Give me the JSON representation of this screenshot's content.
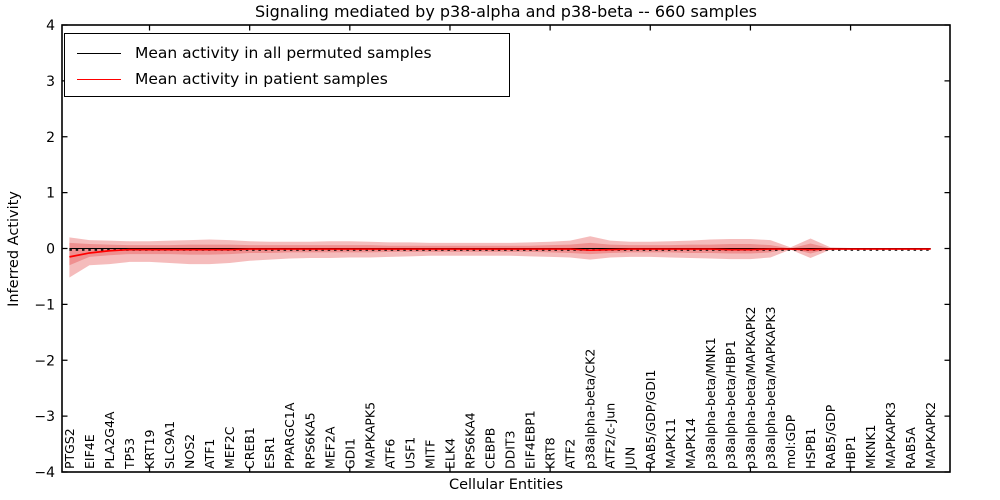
{
  "chart_data": {
    "type": "line",
    "title": "Signaling mediated by p38-alpha and p38-beta -- 660 samples",
    "xlabel": "Cellular Entities",
    "ylabel": "Inferred Activity",
    "ylim": [
      -4,
      4
    ],
    "yticks": [
      4,
      3,
      2,
      1,
      0,
      -1,
      -2,
      -3,
      -4
    ],
    "ytick_labels": [
      "4",
      "3",
      "2",
      "1",
      "0",
      "−1",
      "−2",
      "−3",
      "−4"
    ],
    "x_major_tick_indices": [
      4,
      9,
      14,
      19,
      24,
      29,
      34,
      39
    ],
    "grid": false,
    "legend_position": "upper left",
    "categories": [
      "PTGS2",
      "EIF4E",
      "PLA2G4A",
      "TP53",
      "KRT19",
      "SLC9A1",
      "NOS2",
      "ATF1",
      "MEF2C",
      "CREB1",
      "ESR1",
      "PPARGC1A",
      "RPS6KA5",
      "MEF2A",
      "GDI1",
      "MAPKAPK5",
      "ATF6",
      "USF1",
      "MITF",
      "ELK4",
      "RPS6KA4",
      "CEBPB",
      "DDIT3",
      "EIF4EBP1",
      "KRT8",
      "ATF2",
      "p38alpha-beta/CK2",
      "ATF2/c-Jun",
      "JUN",
      "RAB5/GDP/GDI1",
      "MAPK11",
      "MAPK14",
      "p38alpha-beta/MNK1",
      "p38alpha-beta/HBP1",
      "p38alpha-beta/MAPKAPK2",
      "p38alpha-beta/MAPKAPK3",
      "mol:GDP",
      "HSPB1",
      "RAB5/GDP",
      "HBP1",
      "MKNK1",
      "MAPKAPK3",
      "RAB5A",
      "MAPKAPK2"
    ],
    "series": [
      {
        "name": "Mean activity in all permuted samples",
        "color": "#000000",
        "style": "dashed",
        "values": [
          0,
          0,
          0,
          0,
          0,
          0,
          0,
          0,
          0,
          0,
          0,
          0,
          0,
          0,
          0,
          0,
          0,
          0,
          0,
          0,
          0,
          0,
          0,
          0,
          0,
          0,
          0,
          0,
          0,
          0,
          0,
          0,
          0,
          0,
          0,
          0,
          0,
          0,
          0,
          0,
          0,
          0,
          0,
          0
        ]
      },
      {
        "name": "Mean activity in patient samples",
        "color": "#ff0000",
        "style": "solid",
        "values": [
          -0.15,
          -0.08,
          -0.04,
          -0.02,
          -0.02,
          -0.02,
          -0.02,
          -0.02,
          -0.02,
          -0.01,
          -0.01,
          -0.01,
          -0.01,
          -0.01,
          -0.01,
          -0.01,
          -0.01,
          -0.01,
          -0.01,
          -0.01,
          -0.01,
          -0.01,
          -0.01,
          -0.01,
          -0.01,
          -0.01,
          -0.03,
          -0.02,
          -0.01,
          -0.01,
          -0.01,
          -0.01,
          -0.01,
          -0.02,
          -0.02,
          -0.01,
          -0.01,
          -0.02,
          -0.01,
          -0.01,
          -0.01,
          -0.01,
          -0.01,
          -0.01
        ]
      }
    ],
    "bands": [
      {
        "name": "permuted-spread-outer",
        "color": "#dd2222",
        "opacity": 0.3,
        "upper": [
          0.2,
          0.15,
          0.14,
          0.13,
          0.13,
          0.14,
          0.15,
          0.16,
          0.15,
          0.13,
          0.12,
          0.12,
          0.12,
          0.13,
          0.13,
          0.12,
          0.11,
          0.11,
          0.1,
          0.1,
          0.1,
          0.1,
          0.1,
          0.11,
          0.12,
          0.14,
          0.22,
          0.14,
          0.12,
          0.12,
          0.13,
          0.14,
          0.16,
          0.17,
          0.17,
          0.15,
          0.02,
          0.18,
          0.02,
          0.01,
          0.01,
          0.01,
          0.01,
          0.01
        ],
        "lower": [
          -0.52,
          -0.3,
          -0.28,
          -0.24,
          -0.24,
          -0.26,
          -0.28,
          -0.28,
          -0.26,
          -0.22,
          -0.2,
          -0.18,
          -0.17,
          -0.17,
          -0.16,
          -0.16,
          -0.15,
          -0.14,
          -0.13,
          -0.13,
          -0.13,
          -0.13,
          -0.13,
          -0.14,
          -0.15,
          -0.16,
          -0.2,
          -0.16,
          -0.15,
          -0.15,
          -0.16,
          -0.17,
          -0.18,
          -0.19,
          -0.19,
          -0.16,
          -0.02,
          -0.17,
          -0.02,
          -0.01,
          -0.01,
          -0.01,
          -0.01,
          -0.01
        ]
      },
      {
        "name": "permuted-spread-inner",
        "color": "#dd2222",
        "opacity": 0.28,
        "upper": [
          0.1,
          0.08,
          0.07,
          0.06,
          0.06,
          0.06,
          0.07,
          0.07,
          0.07,
          0.06,
          0.06,
          0.06,
          0.06,
          0.06,
          0.06,
          0.06,
          0.05,
          0.05,
          0.05,
          0.05,
          0.05,
          0.05,
          0.05,
          0.05,
          0.06,
          0.07,
          0.1,
          0.07,
          0.06,
          0.06,
          0.06,
          0.07,
          0.07,
          0.08,
          0.08,
          0.06,
          0.0,
          0.09,
          0.0,
          0.0,
          0.0,
          0.0,
          0.0,
          0.0
        ],
        "lower": [
          -0.3,
          -0.15,
          -0.12,
          -0.1,
          -0.1,
          -0.1,
          -0.11,
          -0.11,
          -0.1,
          -0.08,
          -0.08,
          -0.07,
          -0.07,
          -0.07,
          -0.07,
          -0.07,
          -0.06,
          -0.06,
          -0.06,
          -0.06,
          -0.06,
          -0.06,
          -0.06,
          -0.06,
          -0.07,
          -0.08,
          -0.1,
          -0.08,
          -0.07,
          -0.07,
          -0.07,
          -0.08,
          -0.08,
          -0.09,
          -0.09,
          -0.07,
          0.0,
          -0.09,
          0.0,
          0.0,
          0.0,
          0.0,
          0.0,
          0.0
        ]
      }
    ]
  }
}
